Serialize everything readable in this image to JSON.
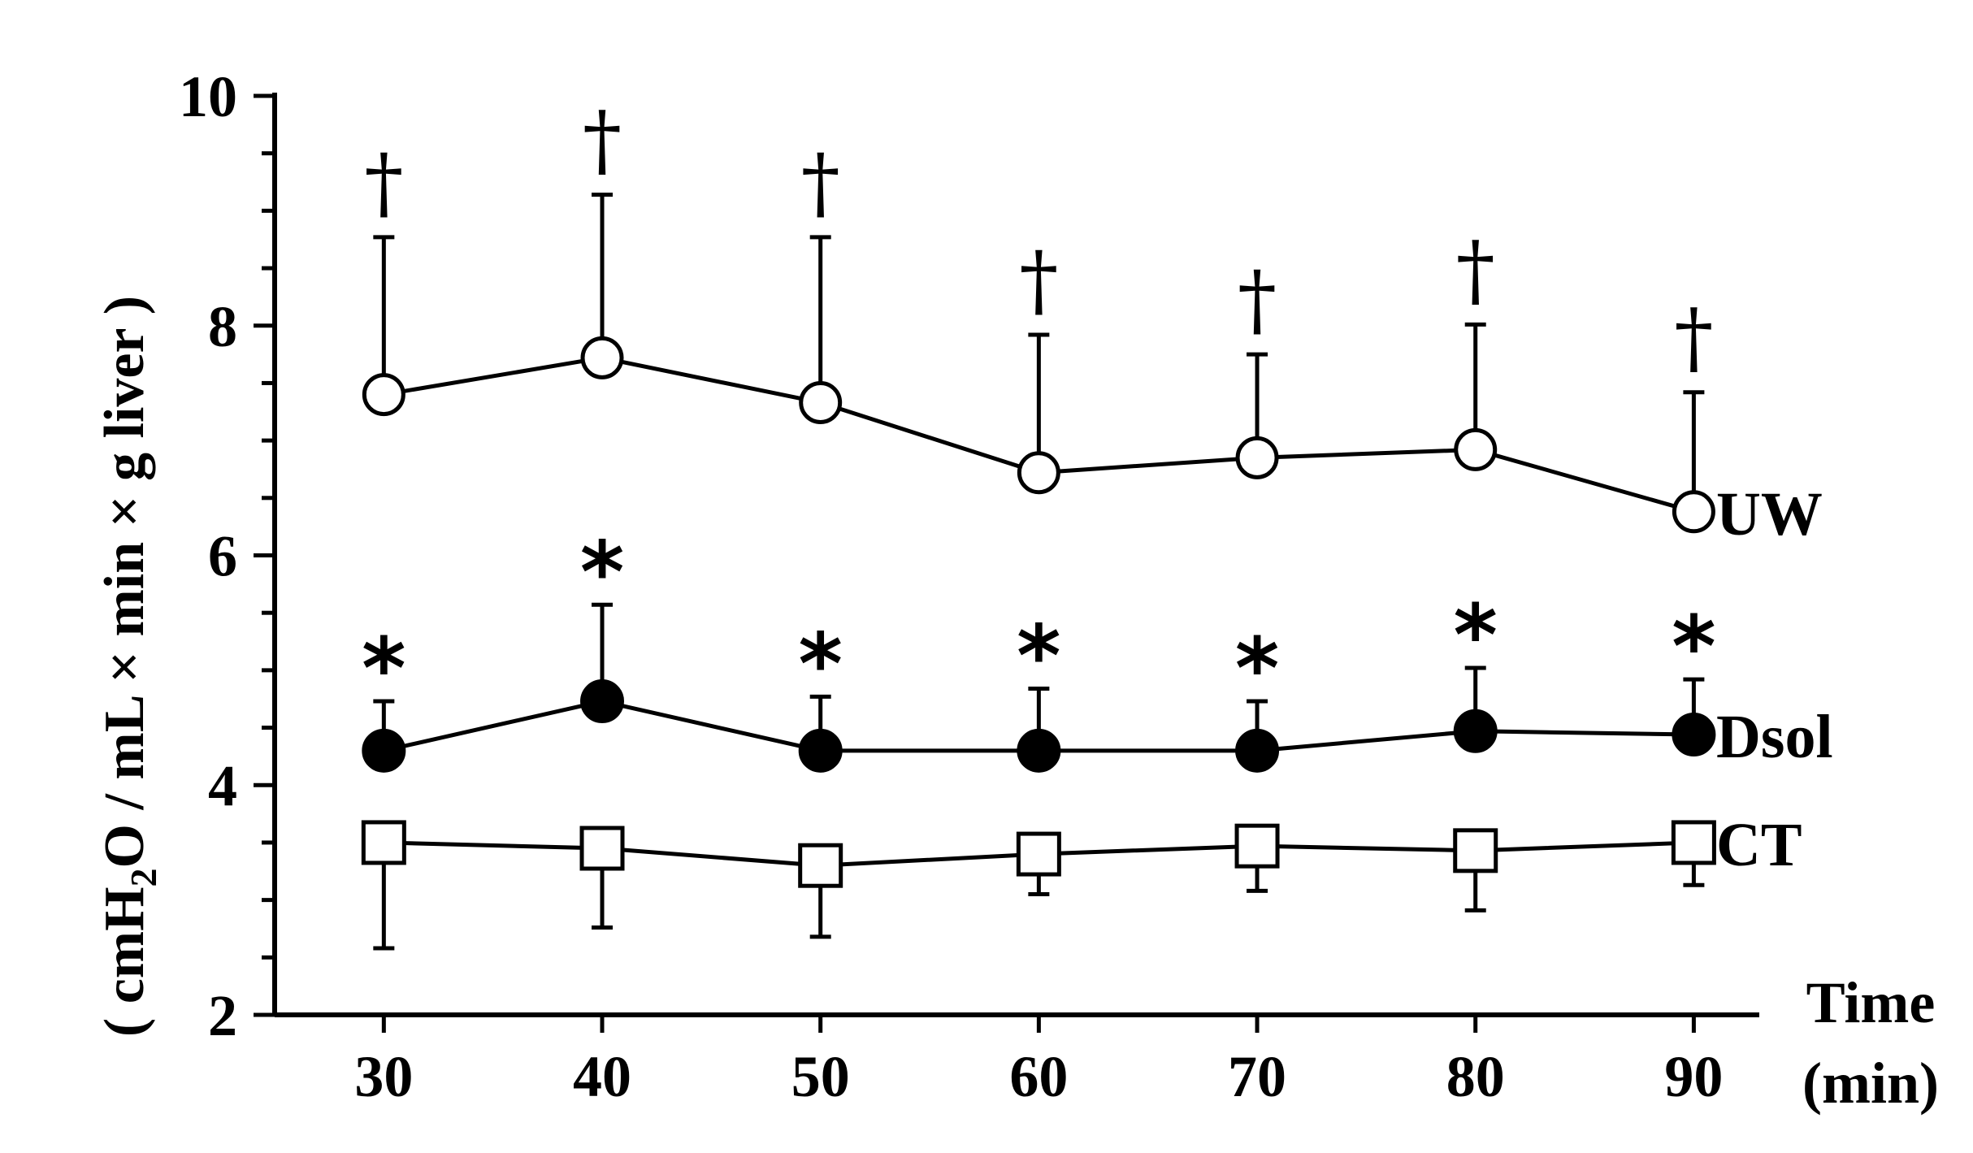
{
  "chart_data": {
    "type": "line",
    "x": [
      30,
      40,
      50,
      60,
      70,
      80,
      90
    ],
    "xlim": [
      25,
      93
    ],
    "ylim": [
      2,
      10
    ],
    "y_ticks": [
      2,
      4,
      6,
      8,
      10
    ],
    "y_minor_step": 0.5,
    "x_ticks": [
      30,
      40,
      50,
      60,
      70,
      80,
      90
    ],
    "xlabel_line1": "Time",
    "xlabel_line2": "(min)",
    "ylabel_parts": {
      "open": "( cmH",
      "sub": "2",
      "rest": "O / mL × min × g liver )"
    },
    "grid": false,
    "series": [
      {
        "name": "UW",
        "marker": "open-circle",
        "values": [
          7.4,
          7.72,
          7.33,
          6.72,
          6.85,
          6.92,
          6.38
        ],
        "error_upper": [
          8.77,
          9.14,
          8.77,
          7.92,
          7.75,
          8.01,
          7.42
        ],
        "annotation": "†"
      },
      {
        "name": "Dsol",
        "marker": "filled-circle",
        "values": [
          4.3,
          4.73,
          4.3,
          4.3,
          4.3,
          4.47,
          4.44
        ],
        "error_upper": [
          4.73,
          5.57,
          4.77,
          4.84,
          4.73,
          5.02,
          4.92
        ],
        "annotation": "*"
      },
      {
        "name": "CT",
        "marker": "open-square",
        "values": [
          3.5,
          3.45,
          3.3,
          3.4,
          3.47,
          3.43,
          3.5
        ],
        "error_lower": [
          2.58,
          2.76,
          2.68,
          3.05,
          3.08,
          2.91,
          3.13
        ]
      }
    ],
    "colors": {
      "line": "#000000",
      "background": "#ffffff"
    }
  }
}
